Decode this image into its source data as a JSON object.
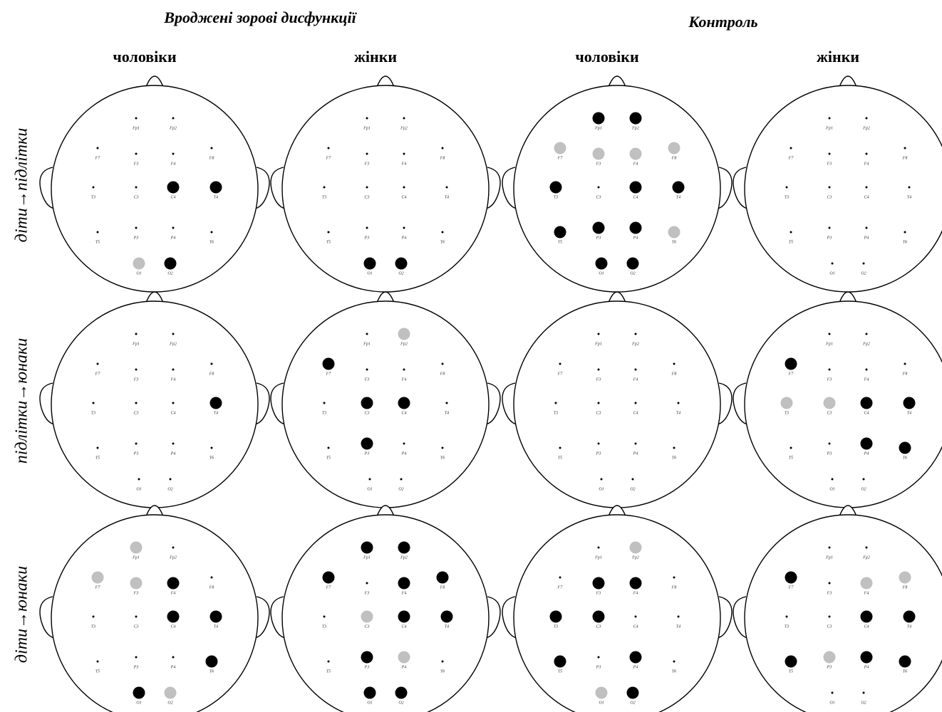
{
  "groups": [
    {
      "title": "Вроджені зорові дисфункції"
    },
    {
      "title": "Контроль"
    }
  ],
  "columns": [
    "чоловіки",
    "жінки",
    "чоловіки",
    "жінки"
  ],
  "rows": [
    "діти→підлітки",
    "підлітки→юнаки",
    "діти→юнаки"
  ],
  "electrodes": [
    "Fp1",
    "Fp2",
    "F7",
    "F3",
    "F4",
    "F8",
    "T3",
    "C3",
    "C4",
    "T4",
    "T5",
    "P3",
    "P4",
    "T6",
    "O1",
    "O2"
  ],
  "state_colors": {
    "b": "#000000",
    "g": "#c0c0c0"
  },
  "maps": [
    [
      "........bb....gb",
      "..............bb",
      "bbggggb.bbbbbgbb",
      "................"
    ],
    [
      ".........b......",
      ".gb....bb..b....",
      "................",
      "..b...ggbb..bb.."
    ],
    [
      "g.ggb...bb...bbg",
      "bbb.bb.gbb.bg.bb",
      ".g.bb.bb..b.b.gb",
      "..b.gg..bbbgbb.."
    ]
  ]
}
